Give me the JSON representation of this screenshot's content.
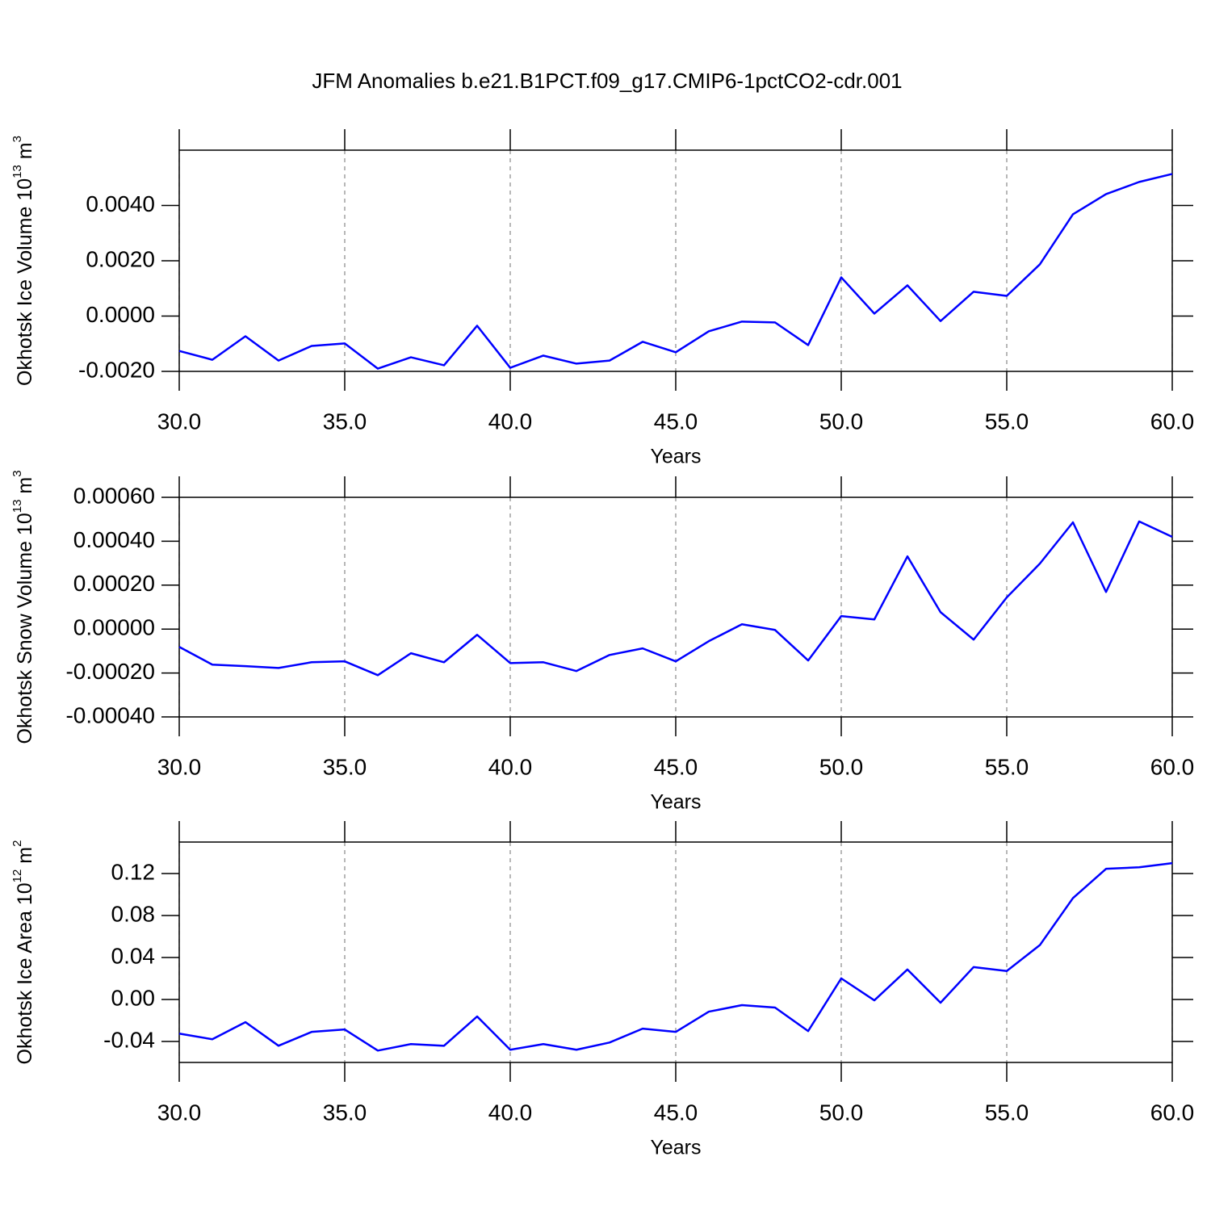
{
  "chart_data": [
    {
      "type": "line",
      "title": "JFM Anomalies b.e21.B1PCT.f09_g17.CMIP6-1pctCO2-cdr.001",
      "ylabel": {
        "text": "Okhotsk Ice Volume 10",
        "exponent": "13",
        "unit": " m",
        "unit_exponent": "3"
      },
      "xlabel": "Years",
      "x": [
        30,
        31,
        32,
        33,
        34,
        35,
        36,
        37,
        38,
        39,
        40,
        41,
        42,
        43,
        44,
        45,
        46,
        47,
        48,
        49,
        50,
        51,
        52,
        53,
        54,
        55,
        56,
        57,
        58,
        59,
        60
      ],
      "values": [
        -0.00126,
        -0.00158,
        -0.00073,
        -0.00161,
        -0.00108,
        -0.00099,
        -0.0019,
        -0.00149,
        -0.00178,
        -0.00035,
        -0.00187,
        -0.00143,
        -0.00172,
        -0.00161,
        -0.00093,
        -0.00131,
        -0.00055,
        -0.0002,
        -0.00023,
        -0.00105,
        0.0014,
        9e-05,
        0.00111,
        -0.00018,
        0.00088,
        0.00073,
        0.00187,
        0.00368,
        0.00441,
        0.00485,
        0.00514
      ],
      "color": "#0000ff",
      "xlim": [
        30,
        60
      ],
      "xticks": [
        {
          "value": 30,
          "label": "30.0"
        },
        {
          "value": 35,
          "label": "35.0"
        },
        {
          "value": 40,
          "label": "40.0"
        },
        {
          "value": 45,
          "label": "45.0"
        },
        {
          "value": 50,
          "label": "50.0"
        },
        {
          "value": 55,
          "label": "55.0"
        },
        {
          "value": 60,
          "label": "60.0"
        }
      ],
      "ylim": [
        -0.002,
        0.006
      ],
      "yticks": [
        {
          "value": -0.002,
          "label": "-0.0020"
        },
        {
          "value": 0,
          "label": "0.0000"
        },
        {
          "value": 0.002,
          "label": "0.0020"
        },
        {
          "value": 0.004,
          "label": "0.0040"
        }
      ],
      "grid": "x-dashed"
    },
    {
      "type": "line",
      "ylabel": {
        "text": "Okhotsk Snow Volume 10",
        "exponent": "13",
        "unit": " m",
        "unit_exponent": "3"
      },
      "xlabel": "Years",
      "x": [
        30,
        31,
        32,
        33,
        34,
        35,
        36,
        37,
        38,
        39,
        40,
        41,
        42,
        43,
        44,
        45,
        46,
        47,
        48,
        49,
        50,
        51,
        52,
        53,
        54,
        55,
        56,
        57,
        58,
        59,
        60
      ],
      "values": [
        -8.1e-05,
        -0.000162,
        -0.000169,
        -0.000177,
        -0.000151,
        -0.000147,
        -0.00021,
        -0.00011,
        -0.000151,
        -2.6e-05,
        -0.000155,
        -0.000151,
        -0.000191,
        -0.000118,
        -8.8e-05,
        -0.000147,
        -5.5e-05,
        2.2e-05,
        -4e-06,
        -0.000143,
        5.9e-05,
        4.4e-05,
        0.000331,
        7.7e-05,
        -4.8e-05,
        0.000144,
        0.000298,
        0.000486,
        0.000169,
        0.00049,
        0.00042
      ],
      "color": "#0000ff",
      "xlim": [
        30,
        60
      ],
      "xticks": [
        {
          "value": 30,
          "label": "30.0"
        },
        {
          "value": 35,
          "label": "35.0"
        },
        {
          "value": 40,
          "label": "40.0"
        },
        {
          "value": 45,
          "label": "45.0"
        },
        {
          "value": 50,
          "label": "50.0"
        },
        {
          "value": 55,
          "label": "55.0"
        },
        {
          "value": 60,
          "label": "60.0"
        }
      ],
      "ylim": [
        -0.0004,
        0.0006
      ],
      "yticks": [
        {
          "value": -0.0004,
          "label": "-0.00040"
        },
        {
          "value": -0.0002,
          "label": "-0.00020"
        },
        {
          "value": 0,
          "label": "0.00000"
        },
        {
          "value": 0.0002,
          "label": "0.00020"
        },
        {
          "value": 0.0004,
          "label": "0.00040"
        },
        {
          "value": 0.0006,
          "label": "0.00060"
        }
      ],
      "grid": "x-dashed"
    },
    {
      "type": "line",
      "ylabel": {
        "text": "Okhotsk Ice Area 10",
        "exponent": "12",
        "unit": " m",
        "unit_exponent": "2"
      },
      "xlabel": "Years",
      "x": [
        30,
        31,
        32,
        33,
        34,
        35,
        36,
        37,
        38,
        39,
        40,
        41,
        42,
        43,
        44,
        45,
        46,
        47,
        48,
        49,
        50,
        51,
        52,
        53,
        54,
        55,
        56,
        57,
        58,
        59,
        60
      ],
      "values": [
        -0.0325,
        -0.0379,
        -0.0216,
        -0.0441,
        -0.0309,
        -0.0286,
        -0.0487,
        -0.0425,
        -0.0441,
        -0.0162,
        -0.0479,
        -0.0425,
        -0.0479,
        -0.041,
        -0.0278,
        -0.0309,
        -0.0116,
        -0.0054,
        -0.0077,
        -0.0301,
        0.0201,
        -0.0008,
        0.0286,
        -0.0031,
        0.0309,
        0.0271,
        0.0518,
        0.0966,
        0.1245,
        0.126,
        0.1299
      ],
      "color": "#0000ff",
      "xlim": [
        30,
        60
      ],
      "xticks": [
        {
          "value": 30,
          "label": "30.0"
        },
        {
          "value": 35,
          "label": "35.0"
        },
        {
          "value": 40,
          "label": "40.0"
        },
        {
          "value": 45,
          "label": "45.0"
        },
        {
          "value": 50,
          "label": "50.0"
        },
        {
          "value": 55,
          "label": "55.0"
        },
        {
          "value": 60,
          "label": "60.0"
        }
      ],
      "ylim": [
        -0.06,
        0.15
      ],
      "yticks": [
        -0.04,
        {
          "value": 0,
          "label": "0.00"
        },
        0.04,
        0.08,
        0.12
      ],
      "grid": "x-dashed"
    }
  ]
}
